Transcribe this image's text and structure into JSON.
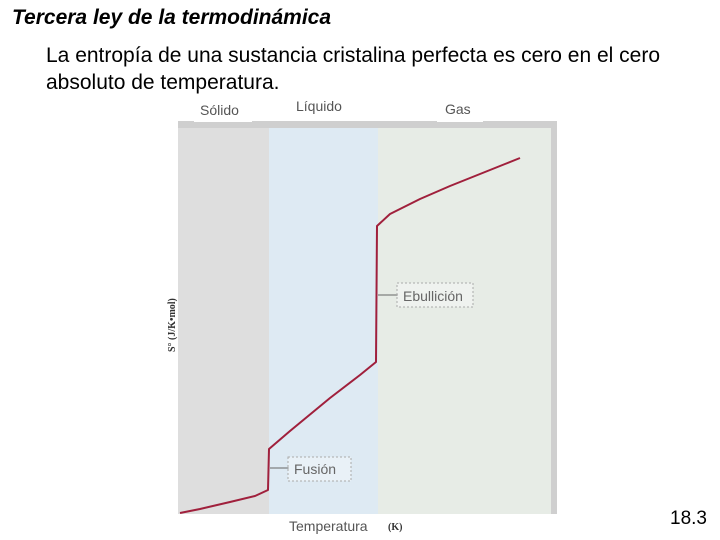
{
  "slide": {
    "title": "Tercera ley de la termodinámica",
    "statement": "La entropía de una sustancia cristalina perfecta es cero en el cero absoluto de temperatura.",
    "number": "18.3"
  },
  "diagram": {
    "phases": {
      "solid": "Sólido",
      "liquid": "Líquido",
      "gas": "Gas"
    },
    "transitions": {
      "fusion": "Fusión",
      "boiling": "Ebullición"
    },
    "x_axis": {
      "label": "Temperatura",
      "unit": "(K)"
    },
    "y_axis": {
      "label": "S° (J/K•mol)"
    },
    "colors": {
      "solid_region": "#dedede",
      "liquid_region": "#deeaf3",
      "gas_region": "#e7ece6",
      "curve": "#a0203c"
    }
  }
}
